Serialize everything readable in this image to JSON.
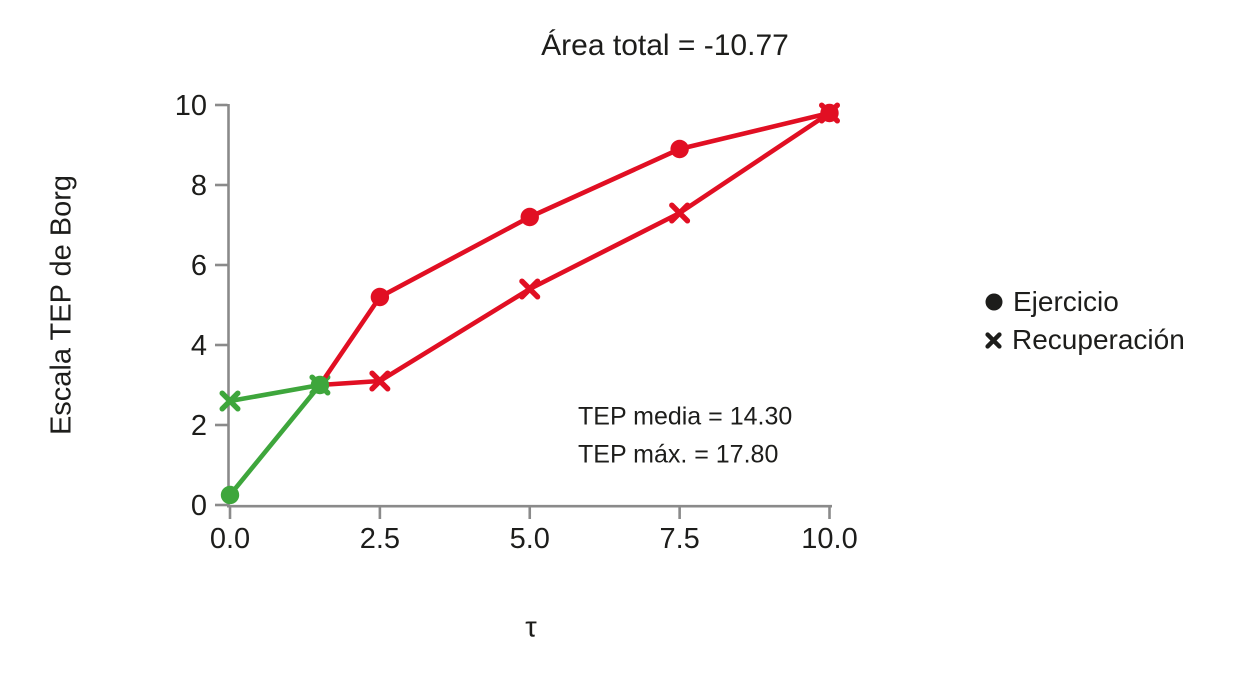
{
  "colors": {
    "red": "#e10f23",
    "green": "#3ea63c",
    "black": "#1d1d1b",
    "axis_gray": "#8a8a8a",
    "background": "#ffffff"
  },
  "chart_data": {
    "type": "line",
    "title": "Área total = -10.77",
    "xlabel": "τ",
    "ylabel": "Escala TEP de Borg",
    "xlim": [
      0,
      10
    ],
    "ylim": [
      0,
      10
    ],
    "grid": false,
    "legend_position": "right-outside",
    "xticks": {
      "values": [
        0,
        2.5,
        5,
        7.5,
        10
      ],
      "labels": [
        "0.0",
        "2.5",
        "5.0",
        "7.5",
        "10.0"
      ]
    },
    "yticks": {
      "values": [
        0,
        2,
        4,
        6,
        8,
        10
      ],
      "labels": [
        "0",
        "2",
        "4",
        "6",
        "8",
        "10"
      ]
    },
    "series": [
      {
        "name": "Recuperación",
        "marker": "x",
        "x": [
          0,
          1.5,
          2.5,
          5,
          7.5,
          10
        ],
        "y": [
          2.6,
          3.0,
          3.1,
          5.4,
          7.3,
          9.8
        ],
        "segment_colors": [
          "green",
          "red",
          "red",
          "red",
          "red"
        ],
        "marker_colors": [
          "green",
          "green",
          "red",
          "red",
          "red",
          "red"
        ]
      },
      {
        "name": "Ejercicio",
        "marker": "circle",
        "x": [
          0,
          1.5,
          2.5,
          5,
          7.5,
          10
        ],
        "y": [
          0.25,
          3.0,
          5.2,
          7.2,
          8.9,
          9.8
        ],
        "segment_colors": [
          "green",
          "red",
          "red",
          "red",
          "red"
        ],
        "marker_colors": [
          "green",
          "green",
          "red",
          "red",
          "red",
          "red"
        ]
      }
    ],
    "legend": [
      {
        "marker": "circle",
        "label": "Ejercicio"
      },
      {
        "marker": "x",
        "label": "Recuperación"
      }
    ],
    "annotations": [
      "TEP media = 14.30",
      "TEP máx. = 17.80"
    ]
  }
}
